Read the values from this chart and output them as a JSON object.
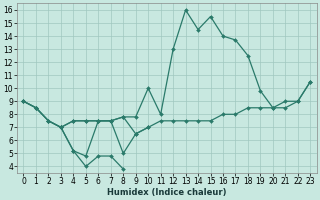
{
  "xlabel": "Humidex (Indice chaleur)",
  "xlim": [
    -0.5,
    23.5
  ],
  "ylim": [
    3.5,
    16.5
  ],
  "xticks": [
    0,
    1,
    2,
    3,
    4,
    5,
    6,
    7,
    8,
    9,
    10,
    11,
    12,
    13,
    14,
    15,
    16,
    17,
    18,
    19,
    20,
    21,
    22,
    23
  ],
  "yticks": [
    4,
    5,
    6,
    7,
    8,
    9,
    10,
    11,
    12,
    13,
    14,
    15,
    16
  ],
  "bg_color": "#c8e8e0",
  "line_color": "#2a7a6a",
  "grid_color": "#a0c8c0",
  "lines": [
    {
      "x": [
        0,
        1,
        2,
        3,
        4,
        5,
        6,
        7,
        8,
        9
      ],
      "y": [
        9.0,
        8.5,
        7.5,
        7.0,
        5.2,
        4.0,
        4.8,
        4.8,
        3.8,
        null
      ]
    },
    {
      "x": [
        3,
        4,
        5,
        6,
        7,
        8,
        9,
        10,
        11
      ],
      "y": [
        7.0,
        5.2,
        4.8,
        7.5,
        7.5,
        5.0,
        6.5,
        7.0,
        null
      ]
    },
    {
      "x": [
        0,
        1,
        2,
        3,
        4,
        5,
        6,
        7,
        8,
        9,
        10,
        11,
        12,
        13,
        14,
        15,
        16,
        17,
        18,
        19,
        20,
        21,
        22,
        23
      ],
      "y": [
        9.0,
        8.5,
        7.5,
        7.0,
        7.5,
        7.5,
        7.5,
        7.5,
        7.8,
        7.8,
        10.0,
        8.0,
        13.0,
        16.0,
        14.5,
        15.5,
        14.0,
        13.7,
        12.5,
        9.8,
        8.5,
        8.5,
        9.0,
        10.5
      ]
    },
    {
      "x": [
        0,
        1,
        2,
        3,
        4,
        5,
        6,
        7,
        8,
        9,
        10,
        11,
        12,
        13,
        14,
        15,
        16,
        17,
        18,
        19,
        20,
        21,
        22,
        23
      ],
      "y": [
        9.0,
        8.5,
        7.5,
        7.0,
        7.5,
        7.5,
        7.5,
        7.5,
        7.8,
        6.5,
        7.0,
        7.5,
        7.5,
        7.5,
        7.5,
        7.5,
        8.0,
        8.0,
        8.5,
        8.5,
        8.5,
        9.0,
        9.0,
        10.5
      ]
    }
  ]
}
